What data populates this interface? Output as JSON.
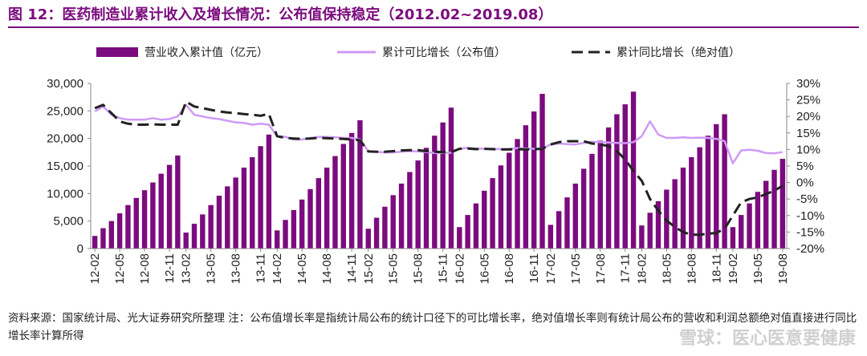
{
  "title": "图 12：医药制造业累计收入及增长情况：公布值保持稳定（2012.02~2019.08）",
  "source_note": "资料来源：国家统计局、光大证券研究所整理 注：公布值增长率是指统计局公布的统计口径下的可比增长率，绝对值增长率则有统计局公布的营收和利润总额绝对值直接进行同比增长率计算所得",
  "watermark": "雪球：医心医意要健康",
  "colors": {
    "bar": "#7B0B7E",
    "comparable": "#CF9AF5",
    "absolute": "#222222",
    "title": "#7B0B7E"
  },
  "chart_data": {
    "type": "bar+line",
    "categories": [
      "12-02",
      "12-03",
      "12-04",
      "12-05",
      "12-06",
      "12-07",
      "12-08",
      "12-09",
      "12-10",
      "12-11",
      "12-12",
      "13-02",
      "13-03",
      "13-04",
      "13-05",
      "13-06",
      "13-07",
      "13-08",
      "13-09",
      "13-10",
      "13-11",
      "13-12",
      "14-02",
      "14-03",
      "14-04",
      "14-05",
      "14-06",
      "14-07",
      "14-08",
      "14-09",
      "14-10",
      "14-11",
      "14-12",
      "15-02",
      "15-03",
      "15-04",
      "15-05",
      "15-06",
      "15-07",
      "15-08",
      "15-09",
      "15-10",
      "15-11",
      "15-12",
      "16-02",
      "16-03",
      "16-04",
      "16-05",
      "16-06",
      "16-07",
      "16-08",
      "16-09",
      "16-10",
      "16-11",
      "16-12",
      "17-02",
      "17-03",
      "17-04",
      "17-05",
      "17-06",
      "17-07",
      "17-08",
      "17-09",
      "17-10",
      "17-11",
      "17-12",
      "18-02",
      "18-03",
      "18-04",
      "18-05",
      "18-06",
      "18-07",
      "18-08",
      "18-09",
      "18-10",
      "18-11",
      "18-12",
      "19-02",
      "19-03",
      "19-04",
      "19-05",
      "19-06",
      "19-07",
      "19-08"
    ],
    "x_tick_labels": [
      "12-02",
      "12-05",
      "12-08",
      "12-11",
      "13-02",
      "13-05",
      "13-08",
      "13-11",
      "14-02",
      "14-05",
      "14-08",
      "14-11",
      "15-02",
      "15-05",
      "15-08",
      "15-11",
      "16-02",
      "16-05",
      "16-08",
      "16-11",
      "17-02",
      "17-05",
      "17-08",
      "17-11",
      "18-02",
      "18-05",
      "18-08",
      "18-11",
      "19-02",
      "19-05",
      "19-08"
    ],
    "series": [
      {
        "name": "营业收入累计值（亿元）",
        "kind": "bar",
        "axis": "left",
        "values": [
          2300,
          3700,
          5000,
          6400,
          7900,
          9200,
          10600,
          12000,
          13600,
          15200,
          16900,
          2900,
          4500,
          6200,
          7900,
          9600,
          11300,
          12900,
          14700,
          16600,
          18600,
          20700,
          3300,
          5200,
          7000,
          8900,
          10800,
          12800,
          14700,
          16800,
          19000,
          21000,
          23300,
          3600,
          5600,
          7600,
          9700,
          11800,
          13900,
          16000,
          18300,
          20500,
          22900,
          25600,
          3900,
          6100,
          8200,
          10500,
          12800,
          15100,
          17400,
          19900,
          22400,
          24900,
          28100,
          4300,
          6800,
          9300,
          11800,
          14500,
          17200,
          19600,
          22000,
          24400,
          26200,
          28500,
          4200,
          6500,
          8600,
          10700,
          12600,
          14700,
          16600,
          18400,
          20500,
          22600,
          24400,
          3900,
          6100,
          8200,
          10300,
          12300,
          14300,
          16300
        ]
      },
      {
        "name": "累计可比增长（公布值）",
        "kind": "line",
        "axis": "right",
        "values": [
          21.5,
          23,
          20.5,
          19.5,
          19,
          19,
          19,
          19.5,
          19,
          19.2,
          20,
          23.5,
          20.5,
          20,
          19.5,
          19.2,
          18.7,
          18.2,
          18,
          17.5,
          17.8,
          17.5,
          14,
          13.8,
          13,
          13,
          13.5,
          13.8,
          13.8,
          13.7,
          13.5,
          13.5,
          13,
          9.5,
          9.3,
          9.1,
          9.1,
          9.3,
          9.5,
          9.4,
          9.2,
          8.9,
          9,
          9,
          10.2,
          10.5,
          10.3,
          10.2,
          10.2,
          10.1,
          10.2,
          10.4,
          10.3,
          10.2,
          10.3,
          11.5,
          11.8,
          11.6,
          11.5,
          12,
          12.3,
          12.2,
          12.1,
          12,
          11.9,
          12.2,
          14,
          18.5,
          14.5,
          13.5,
          13.5,
          13.7,
          13.5,
          13.6,
          13.5,
          13.2,
          12.5,
          5.8,
          9.7,
          9.9,
          9.6,
          8.9,
          8.8,
          9.2
        ]
      },
      {
        "name": "累计同比增长（绝对值）",
        "kind": "line",
        "axis": "right",
        "values": [
          22.5,
          23.5,
          21,
          18.5,
          17.8,
          17.5,
          17.5,
          17.6,
          17.5,
          17.5,
          17.5,
          24.5,
          23,
          22.5,
          22,
          21.5,
          21.2,
          21,
          20.7,
          20.5,
          20.2,
          20.8,
          14,
          13.5,
          13.3,
          13.2,
          13.3,
          13.5,
          13.4,
          13.3,
          13.2,
          13,
          12.8,
          9.4,
          9.3,
          9.3,
          9.5,
          9.7,
          9.8,
          9.8,
          9.5,
          9.3,
          9.2,
          9.2,
          10.2,
          10.3,
          10.1,
          10.2,
          10.1,
          10,
          10,
          10.1,
          10,
          10.1,
          10.2,
          11.5,
          12.2,
          12.5,
          12.5,
          12.5,
          11.8,
          11.5,
          11,
          9.5,
          7,
          3.5,
          0.5,
          -5,
          -8.5,
          -11.5,
          -13.5,
          -15,
          -15.8,
          -15.8,
          -15.5,
          -15.3,
          -14,
          -10,
          -6,
          -5,
          -4.5,
          -3.5,
          -2.5,
          -1
        ]
      }
    ],
    "left_axis": {
      "min": 0,
      "max": 30000,
      "ticks": [
        0,
        5000,
        10000,
        15000,
        20000,
        25000,
        30000
      ],
      "tick_labels": [
        "0",
        "5,000",
        "10,000",
        "15,000",
        "20,000",
        "25,000",
        "30,000"
      ]
    },
    "right_axis": {
      "min": -20,
      "max": 30,
      "ticks": [
        -20,
        -15,
        -10,
        -5,
        0,
        5,
        10,
        15,
        20,
        25,
        30
      ],
      "tick_labels": [
        "-20%",
        "-15%",
        "-10%",
        "-5%",
        "0%",
        "5%",
        "10%",
        "15%",
        "20%",
        "25%",
        "30%"
      ]
    },
    "legend_position": "top",
    "grid": false
  }
}
